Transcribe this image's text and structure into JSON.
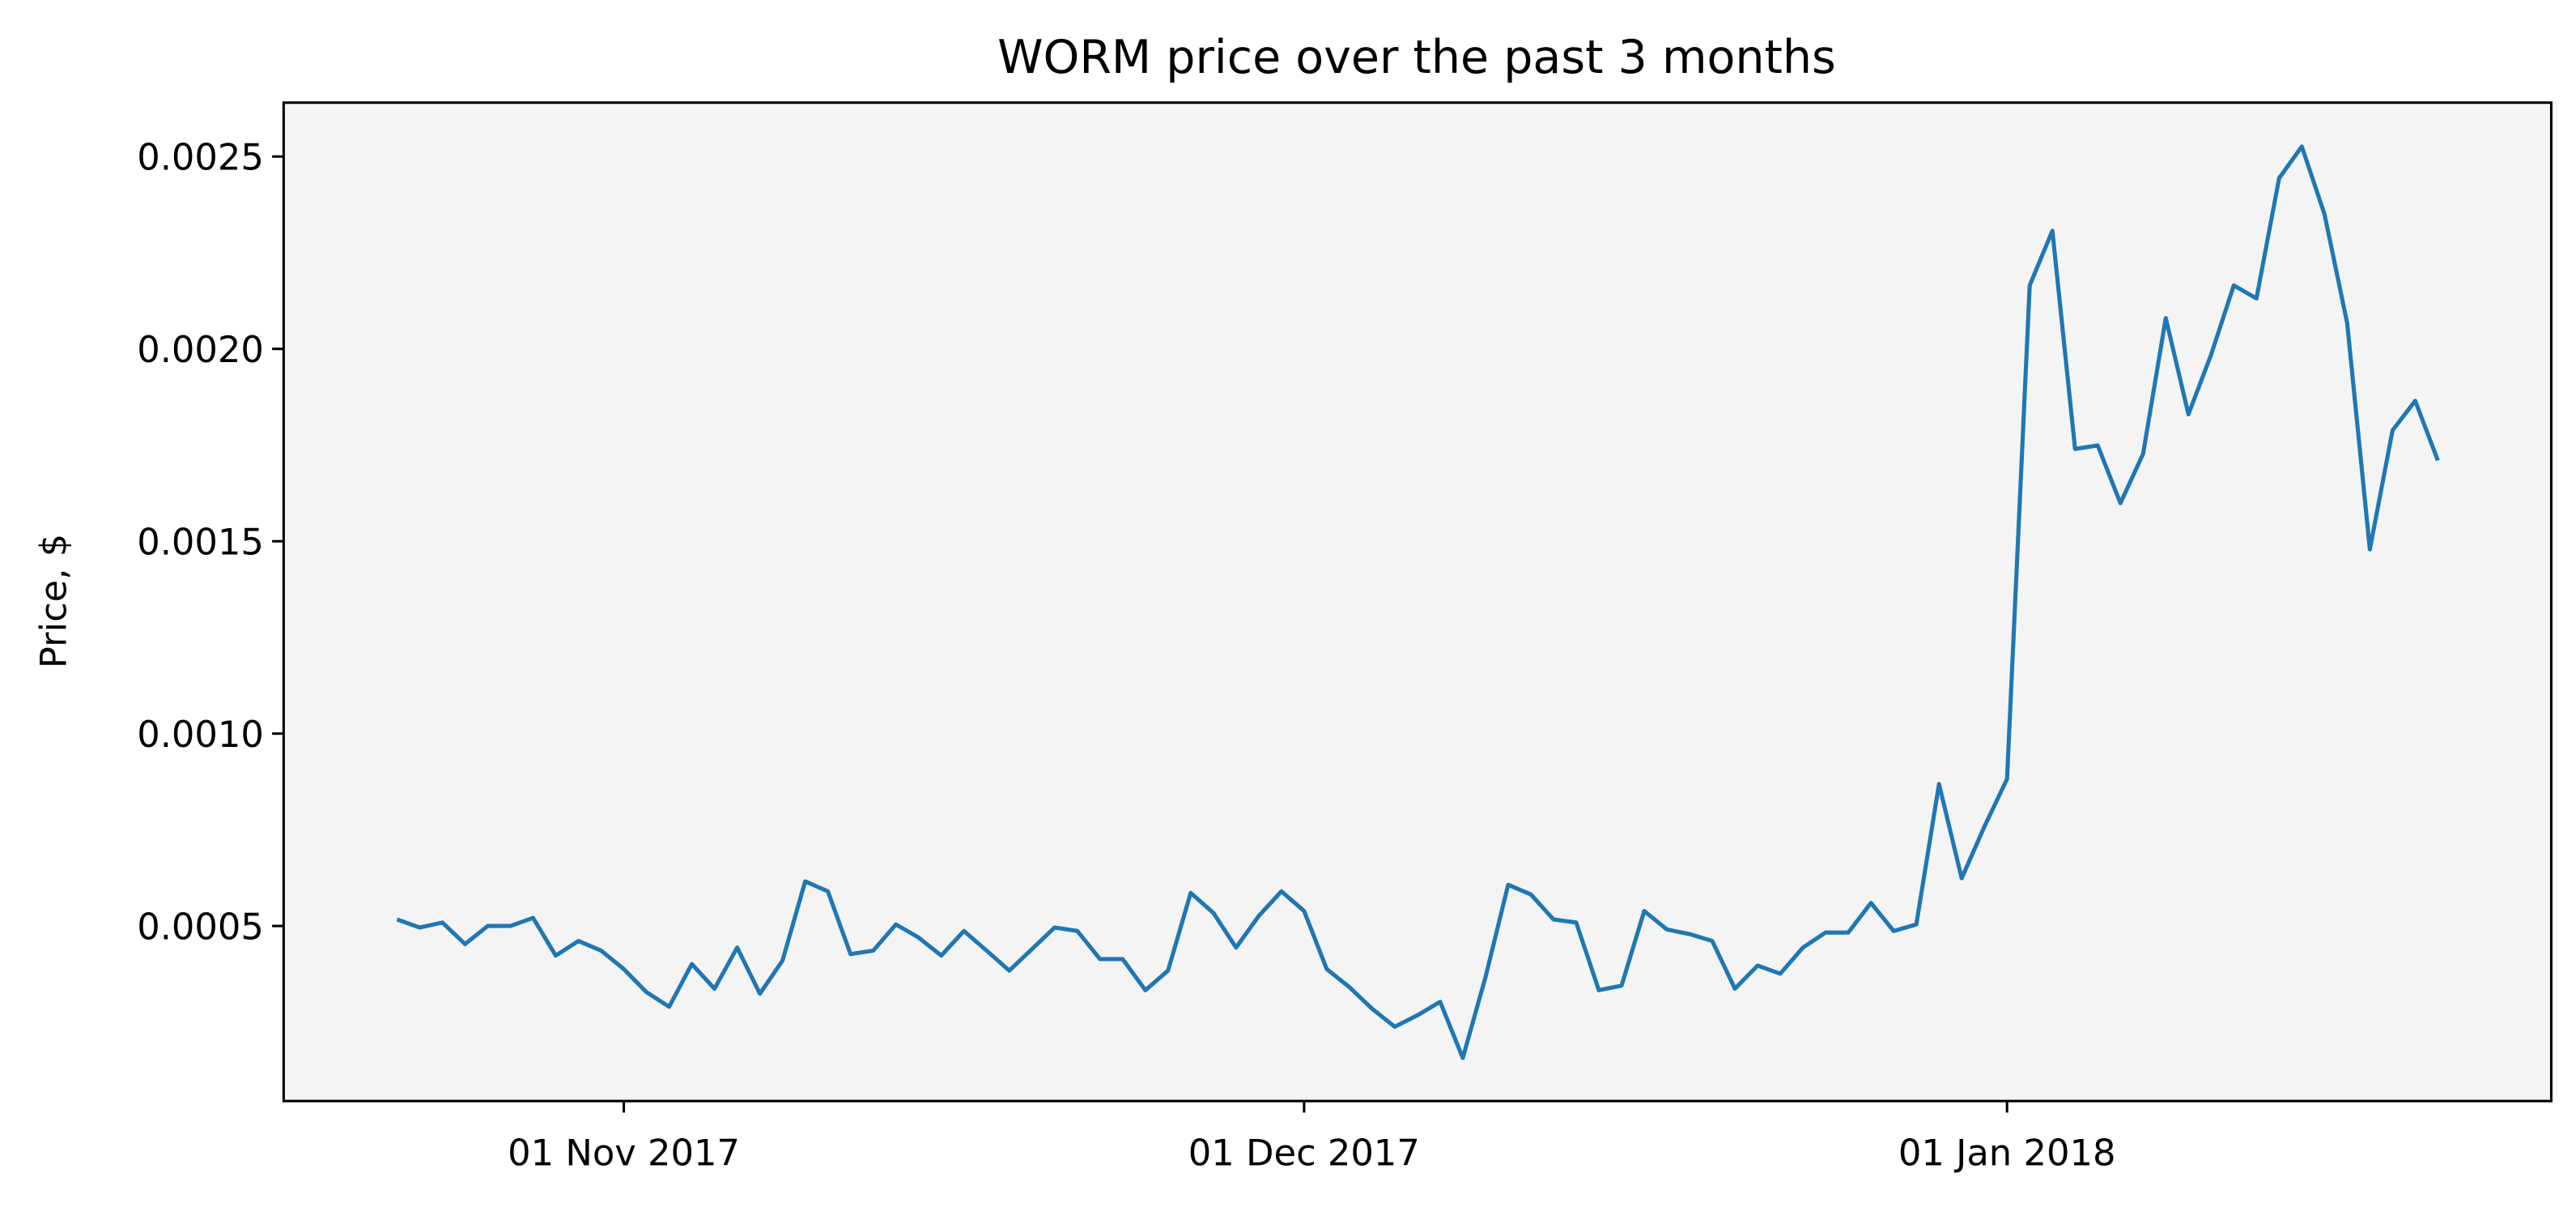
{
  "chart_data": {
    "type": "line",
    "title": "WORM price over the past 3 months",
    "ylabel": "Price, $",
    "x": [
      "2017-10-22",
      "2017-10-23",
      "2017-10-24",
      "2017-10-25",
      "2017-10-26",
      "2017-10-27",
      "2017-10-28",
      "2017-10-29",
      "2017-10-30",
      "2017-10-31",
      "2017-11-01",
      "2017-11-02",
      "2017-11-03",
      "2017-11-04",
      "2017-11-05",
      "2017-11-06",
      "2017-11-07",
      "2017-11-08",
      "2017-11-09",
      "2017-11-10",
      "2017-11-11",
      "2017-11-12",
      "2017-11-13",
      "2017-11-14",
      "2017-11-15",
      "2017-11-16",
      "2017-11-17",
      "2017-11-18",
      "2017-11-19",
      "2017-11-20",
      "2017-11-21",
      "2017-11-22",
      "2017-11-23",
      "2017-11-24",
      "2017-11-25",
      "2017-11-26",
      "2017-11-27",
      "2017-11-28",
      "2017-11-29",
      "2017-11-30",
      "2017-12-01",
      "2017-12-02",
      "2017-12-03",
      "2017-12-04",
      "2017-12-05",
      "2017-12-06",
      "2017-12-07",
      "2017-12-08",
      "2017-12-09",
      "2017-12-10",
      "2017-12-11",
      "2017-12-12",
      "2017-12-13",
      "2017-12-14",
      "2017-12-15",
      "2017-12-16",
      "2017-12-17",
      "2017-12-18",
      "2017-12-19",
      "2017-12-20",
      "2017-12-21",
      "2017-12-22",
      "2017-12-23",
      "2017-12-24",
      "2017-12-25",
      "2017-12-26",
      "2017-12-27",
      "2017-12-28",
      "2017-12-29",
      "2017-12-30",
      "2017-12-31",
      "2018-01-01",
      "2018-01-02",
      "2018-01-03",
      "2018-01-04",
      "2018-01-05",
      "2018-01-06",
      "2018-01-07",
      "2018-01-08",
      "2018-01-09",
      "2018-01-10",
      "2018-01-11",
      "2018-01-12",
      "2018-01-13",
      "2018-01-14",
      "2018-01-15",
      "2018-01-16",
      "2018-01-17",
      "2018-01-18",
      "2018-01-19",
      "2018-01-20"
    ],
    "values": [
      0.000517,
      0.000496,
      0.000509,
      0.000453,
      0.0005,
      0.0005,
      0.000521,
      0.000423,
      0.000461,
      0.000436,
      0.000388,
      0.000328,
      0.00029,
      0.000401,
      0.000337,
      0.000444,
      0.000324,
      0.00041,
      0.000616,
      0.00059,
      0.000427,
      0.000436,
      0.000504,
      0.00047,
      0.000423,
      0.000487,
      0.000436,
      0.000384,
      0.00044,
      0.000496,
      0.000487,
      0.000414,
      0.000414,
      0.000333,
      0.000384,
      0.000586,
      0.000534,
      0.000444,
      0.000526,
      0.00059,
      0.000539,
      0.000388,
      0.000341,
      0.000285,
      0.000238,
      0.000268,
      0.000303,
      0.000157,
      0.000367,
      0.000607,
      0.000582,
      0.000517,
      0.000509,
      0.000333,
      0.000345,
      0.000539,
      0.000491,
      0.000479,
      0.000461,
      0.000337,
      0.000397,
      0.000376,
      0.000444,
      0.000483,
      0.000483,
      0.00056,
      0.000487,
      0.000504,
      0.000869,
      0.000624,
      0.000758,
      0.000882,
      0.002165,
      0.002307,
      0.00174,
      0.001749,
      0.001599,
      0.001727,
      0.00208,
      0.00183,
      0.001985,
      0.002165,
      0.002131,
      0.002444,
      0.002526,
      0.00235,
      0.002067,
      0.001479,
      0.001788,
      0.001865,
      0.00171
    ],
    "color": "#1f77b4",
    "background": "#f4f4f4",
    "xlim": [
      "2017-10-17",
      "2018-01-25"
    ],
    "xticks": [
      {
        "value": "2017-11-01",
        "label": "01 Nov 2017"
      },
      {
        "value": "2017-12-01",
        "label": "01 Dec 2017"
      },
      {
        "value": "2018-01-01",
        "label": "01 Jan 2018"
      }
    ],
    "ylim": [
      4.5e-05,
      0.00264
    ],
    "yticks": [
      0.0005,
      {
        "value": 0.001,
        "label": "0.0010"
      },
      0.0015,
      {
        "value": 0.002,
        "label": "0.0020"
      },
      0.0025
    ]
  }
}
